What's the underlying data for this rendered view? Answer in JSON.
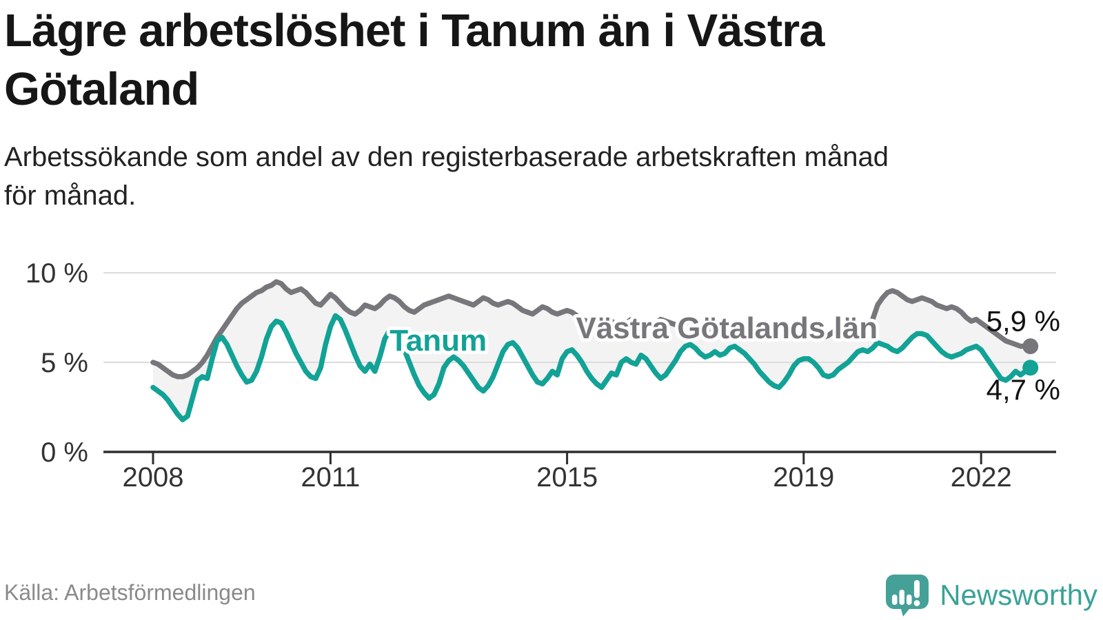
{
  "header": {
    "title_lines": [
      "Lägre arbetslöshet i Tanum än i Västra",
      "Götaland"
    ],
    "subtitle_lines": [
      "Arbetssökande som andel av den registerbaserade arbetskraften månad",
      "för månad."
    ]
  },
  "footer": {
    "source": "Källa: Arbetsförmedlingen",
    "logo_text": "Newsworthy"
  },
  "colors": {
    "tanum": "#12a296",
    "county": "#77767b",
    "fill_between": "#f3f3f3",
    "grid": "#dcdcdc",
    "axis": "#2e2e2e",
    "tick_label": "#333333",
    "end_label": "#111111",
    "halo": "#ffffff",
    "logo_teal": "#45a098"
  },
  "chart_data": {
    "type": "line",
    "title": "Lägre arbetslöshet i Tanum än i Västra Götaland",
    "subtitle": "Arbetssökande som andel av den registerbaserade arbetskraften månad för månad.",
    "unit": "%",
    "frequency": "monthly",
    "x_start": "2008-01",
    "x_end": "2022-11",
    "grid": "horizontal-only",
    "ylim": [
      0,
      10.4
    ],
    "y_ticks": [
      {
        "value": 0,
        "label": "0 %"
      },
      {
        "value": 5,
        "label": "5 %"
      },
      {
        "value": 10,
        "label": "10 %"
      }
    ],
    "x_ticks": [
      {
        "year": 2008,
        "label": "2008"
      },
      {
        "year": 2011,
        "label": "2011"
      },
      {
        "year": 2015,
        "label": "2015"
      },
      {
        "year": 2019,
        "label": "2019"
      },
      {
        "year": 2022,
        "label": "2022"
      }
    ],
    "series": [
      {
        "name": "Västra Götalands län",
        "color_key": "county",
        "end_value": 5.9,
        "end_label": "5,9 %",
        "end_label_pos": "above",
        "label_anchor": {
          "year": 2015.15,
          "value": 6.35
        },
        "values": [
          5.0,
          4.9,
          4.7,
          4.5,
          4.3,
          4.2,
          4.2,
          4.3,
          4.5,
          4.7,
          5.0,
          5.4,
          5.9,
          6.4,
          6.8,
          7.2,
          7.6,
          8.0,
          8.3,
          8.5,
          8.7,
          8.9,
          9.0,
          9.2,
          9.3,
          9.5,
          9.4,
          9.1,
          8.9,
          9.0,
          9.1,
          8.9,
          8.6,
          8.3,
          8.2,
          8.5,
          8.8,
          8.6,
          8.3,
          8.0,
          7.8,
          7.7,
          7.9,
          8.2,
          8.1,
          8.0,
          8.2,
          8.5,
          8.7,
          8.6,
          8.4,
          8.1,
          7.9,
          7.8,
          8.0,
          8.2,
          8.3,
          8.4,
          8.5,
          8.6,
          8.7,
          8.6,
          8.5,
          8.4,
          8.3,
          8.2,
          8.4,
          8.6,
          8.5,
          8.3,
          8.2,
          8.3,
          8.4,
          8.3,
          8.1,
          7.9,
          7.8,
          7.7,
          7.9,
          8.1,
          8.0,
          7.8,
          7.7,
          7.8,
          7.9,
          7.8,
          7.6,
          7.4,
          7.3,
          7.2,
          7.4,
          7.5,
          7.4,
          7.3,
          7.1,
          7.0,
          7.2,
          7.4,
          7.3,
          7.2,
          7.1,
          7.0,
          7.2,
          7.4,
          7.3,
          7.2,
          7.1,
          7.2,
          7.3,
          7.2,
          7.1,
          7.0,
          6.9,
          6.8,
          7.0,
          7.1,
          7.0,
          6.9,
          6.8,
          6.9,
          7.0,
          6.9,
          6.8,
          6.6,
          6.5,
          6.4,
          6.5,
          6.7,
          6.6,
          6.5,
          6.4,
          6.5,
          6.6,
          6.6,
          6.5,
          6.4,
          6.4,
          6.5,
          6.7,
          6.8,
          6.8,
          6.9,
          6.9,
          7.0,
          7.1,
          7.1,
          7.4,
          8.2,
          8.6,
          8.9,
          9.0,
          8.9,
          8.7,
          8.5,
          8.4,
          8.5,
          8.6,
          8.5,
          8.4,
          8.2,
          8.1,
          8.0,
          8.1,
          8.0,
          7.8,
          7.5,
          7.3,
          7.4,
          7.2,
          7.0,
          6.8,
          6.6,
          6.4,
          6.2,
          6.1,
          6.0,
          5.9,
          5.9,
          5.9
        ]
      },
      {
        "name": "Tanum",
        "color_key": "tanum",
        "end_value": 4.7,
        "end_label": "4,7 %",
        "end_label_pos": "below",
        "label_anchor": {
          "year": 2012.0,
          "value": 5.65
        },
        "values": [
          3.6,
          3.4,
          3.2,
          2.9,
          2.5,
          2.1,
          1.8,
          2.0,
          3.0,
          4.0,
          4.2,
          4.1,
          5.2,
          6.2,
          6.4,
          6.0,
          5.4,
          4.8,
          4.3,
          3.9,
          4.0,
          4.5,
          5.3,
          6.3,
          7.0,
          7.3,
          7.2,
          6.7,
          6.1,
          5.5,
          5.0,
          4.5,
          4.2,
          4.1,
          4.7,
          6.0,
          7.0,
          7.6,
          7.4,
          6.8,
          6.1,
          5.4,
          4.8,
          4.5,
          4.9,
          4.5,
          5.3,
          6.3,
          6.8,
          6.7,
          6.3,
          5.7,
          5.0,
          4.3,
          3.7,
          3.3,
          3.0,
          3.2,
          3.8,
          4.7,
          5.1,
          5.3,
          5.1,
          4.8,
          4.4,
          4.0,
          3.6,
          3.4,
          3.7,
          4.2,
          4.9,
          5.6,
          6.0,
          6.1,
          5.8,
          5.3,
          4.8,
          4.3,
          3.9,
          3.8,
          4.1,
          4.5,
          4.3,
          5.2,
          5.6,
          5.7,
          5.4,
          5.0,
          4.5,
          4.1,
          3.8,
          3.6,
          4.0,
          4.4,
          4.3,
          5.0,
          5.2,
          5.0,
          4.9,
          5.4,
          5.2,
          4.8,
          4.4,
          4.1,
          4.3,
          4.7,
          5.1,
          5.6,
          5.9,
          6.0,
          5.8,
          5.5,
          5.3,
          5.4,
          5.6,
          5.4,
          5.5,
          5.8,
          5.9,
          5.7,
          5.5,
          5.2,
          4.9,
          4.5,
          4.2,
          3.9,
          3.7,
          3.6,
          3.9,
          4.3,
          4.8,
          5.1,
          5.2,
          5.2,
          5.0,
          4.7,
          4.3,
          4.2,
          4.3,
          4.6,
          4.8,
          5.0,
          5.3,
          5.6,
          5.7,
          5.6,
          5.8,
          6.1,
          6.0,
          5.9,
          5.7,
          5.6,
          5.8,
          6.1,
          6.4,
          6.6,
          6.6,
          6.5,
          6.2,
          5.9,
          5.6,
          5.4,
          5.3,
          5.4,
          5.5,
          5.7,
          5.8,
          5.9,
          5.7,
          5.3,
          4.9,
          4.5,
          4.1,
          4.0,
          4.2,
          4.5,
          4.3,
          4.5,
          4.7
        ]
      }
    ]
  }
}
